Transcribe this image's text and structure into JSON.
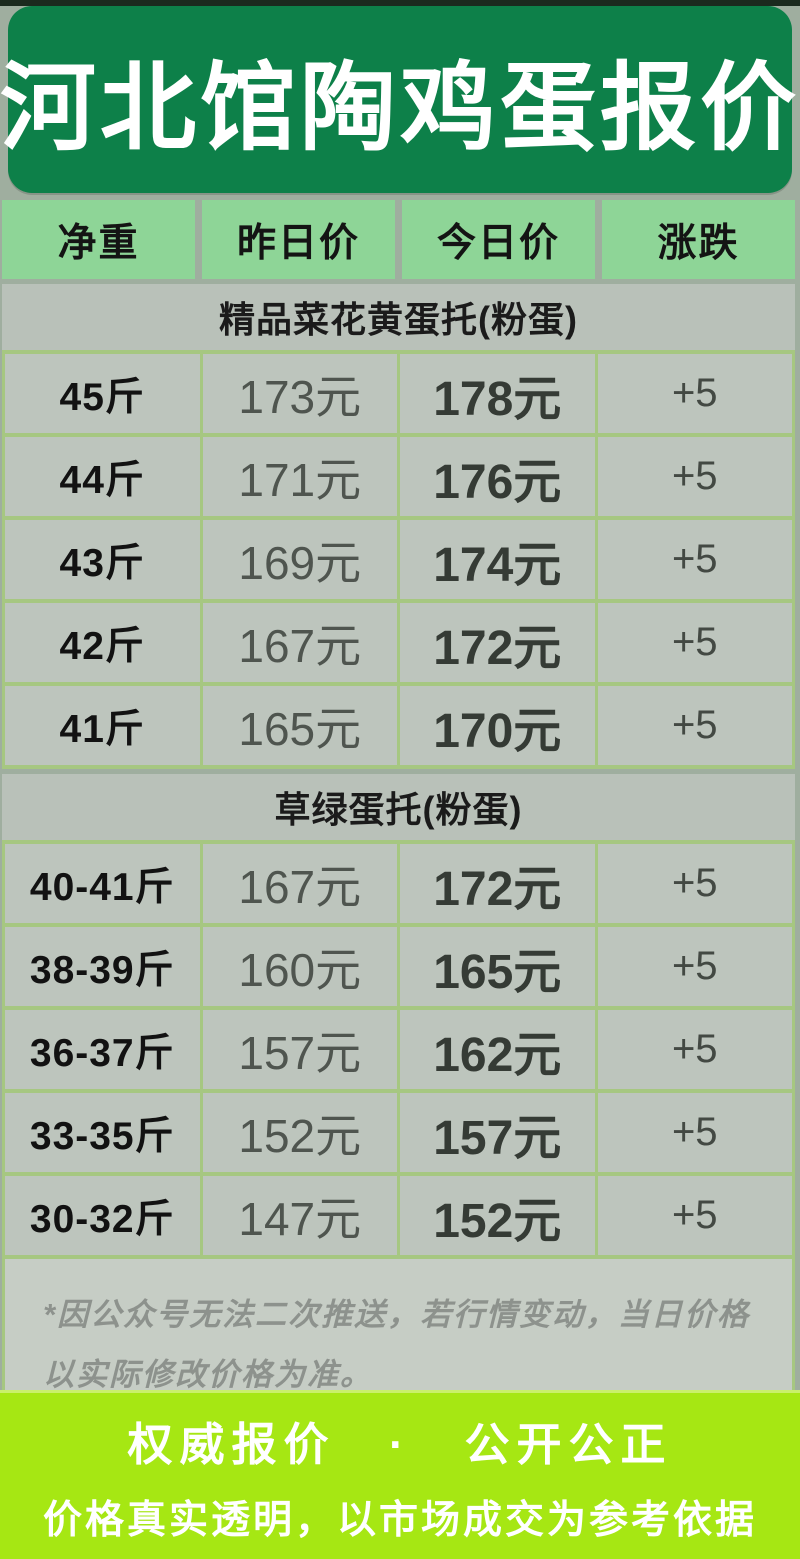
{
  "title": "河北馆陶鸡蛋报价",
  "table": {
    "columns": [
      "净重",
      "昨日价",
      "今日价",
      "涨跌"
    ],
    "sections": [
      {
        "label": "精品菜花黄蛋托(粉蛋)",
        "rows": [
          {
            "weight": "45斤",
            "yesterday": "173元",
            "today": "178元",
            "change": "+5"
          },
          {
            "weight": "44斤",
            "yesterday": "171元",
            "today": "176元",
            "change": "+5"
          },
          {
            "weight": "43斤",
            "yesterday": "169元",
            "today": "174元",
            "change": "+5"
          },
          {
            "weight": "42斤",
            "yesterday": "167元",
            "today": "172元",
            "change": "+5"
          },
          {
            "weight": "41斤",
            "yesterday": "165元",
            "today": "170元",
            "change": "+5"
          }
        ]
      },
      {
        "label": "草绿蛋托(粉蛋)",
        "rows": [
          {
            "weight": "40-41斤",
            "yesterday": "167元",
            "today": "172元",
            "change": "+5"
          },
          {
            "weight": "38-39斤",
            "yesterday": "160元",
            "today": "165元",
            "change": "+5"
          },
          {
            "weight": "36-37斤",
            "yesterday": "157元",
            "today": "162元",
            "change": "+5"
          },
          {
            "weight": "33-35斤",
            "yesterday": "152元",
            "today": "157元",
            "change": "+5"
          },
          {
            "weight": "30-32斤",
            "yesterday": "147元",
            "today": "152元",
            "change": "+5"
          }
        ]
      }
    ],
    "footnote": "*因公众号无法二次推送，若行情变动，当日价格以实际修改价格为准。"
  },
  "banner": {
    "line1": "权威报价 · 公开公正",
    "line2": "价格真实透明，以市场成交为参考依据"
  },
  "colors": {
    "title_green": "#0d8049",
    "header_cell_green": "#8ed597",
    "grid_border_green": "#a6c781",
    "cell_gray": "#bdc5bd",
    "section_gray": "#b9c1b9",
    "footnote_gray": "#c6cdc5",
    "banner_lime": "#a6e713"
  }
}
